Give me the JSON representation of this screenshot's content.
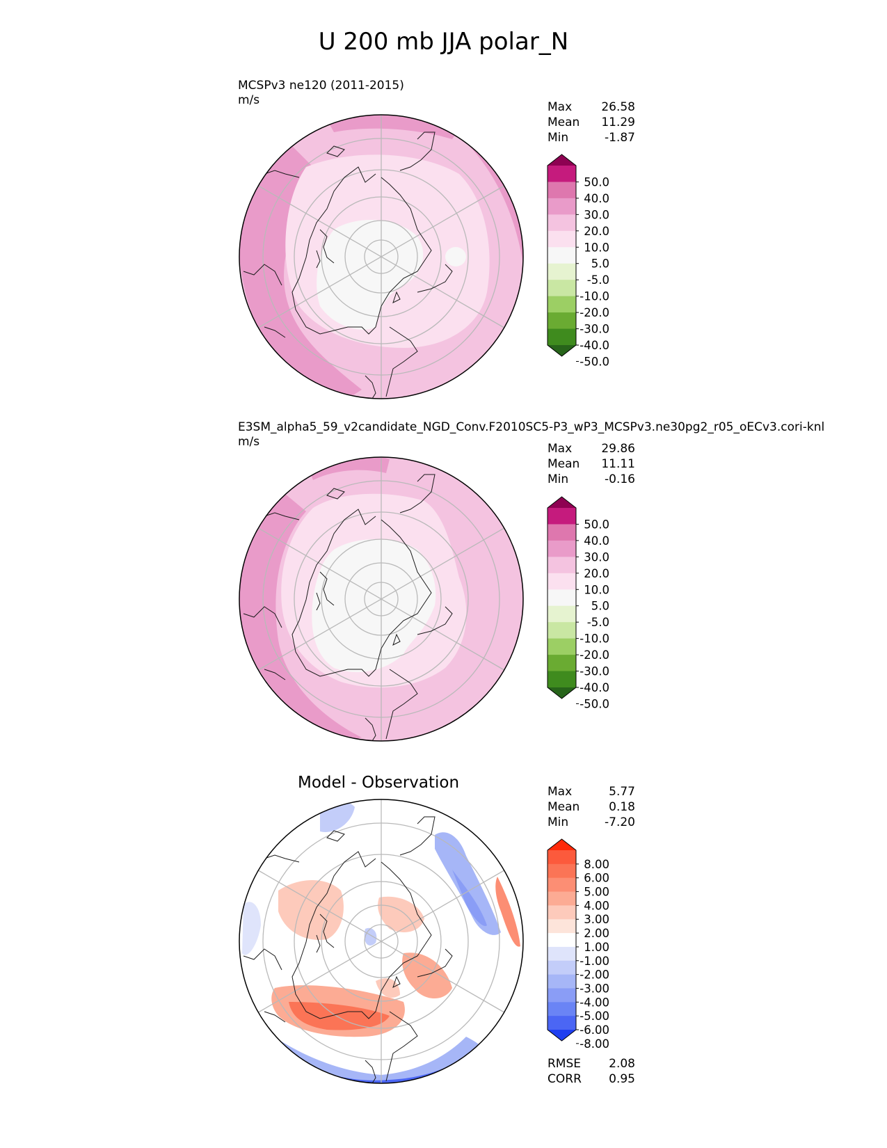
{
  "figure": {
    "title": "U 200 mb JJA polar_N"
  },
  "chart_data": [
    {
      "type": "heatmap",
      "projection": "north-polar-stereographic",
      "title": "MCSPv3 ne120 (2011-2015)",
      "units": "m/s",
      "stats": [
        {
          "label": "Max",
          "value": "26.58"
        },
        {
          "label": "Mean",
          "value": "11.29"
        },
        {
          "label": "Min",
          "value": "-1.87"
        }
      ],
      "colorbar": {
        "levels": [
          "50.0",
          "40.0",
          "30.0",
          "20.0",
          "10.0",
          "5.0",
          "-5.0",
          "-10.0",
          "-20.0",
          "-30.0",
          "-40.0",
          "-50.0"
        ],
        "colors": [
          "#8e0152",
          "#c51b7d",
          "#de77ae",
          "#e99bc9",
          "#f4c3e0",
          "#fbe0ef",
          "#f7f7f7",
          "#e6f3d0",
          "#c9e7a3",
          "#9ccf64",
          "#6aab32",
          "#3f8b1e",
          "#27641a"
        ]
      }
    },
    {
      "type": "heatmap",
      "projection": "north-polar-stereographic",
      "title": "E3SM_alpha5_59_v2candidate_NGD_Conv.F2010SC5-P3_wP3_MCSPv3.ne30pg2_r05_oECv3.cori-knl",
      "units": "m/s",
      "stats": [
        {
          "label": "Max",
          "value": "29.86"
        },
        {
          "label": "Mean",
          "value": "11.11"
        },
        {
          "label": "Min",
          "value": "-0.16"
        }
      ],
      "colorbar": {
        "levels": [
          "50.0",
          "40.0",
          "30.0",
          "20.0",
          "10.0",
          "5.0",
          "-5.0",
          "-10.0",
          "-20.0",
          "-30.0",
          "-40.0",
          "-50.0"
        ],
        "colors": [
          "#8e0152",
          "#c51b7d",
          "#de77ae",
          "#e99bc9",
          "#f4c3e0",
          "#fbe0ef",
          "#f7f7f7",
          "#e6f3d0",
          "#c9e7a3",
          "#9ccf64",
          "#6aab32",
          "#3f8b1e",
          "#27641a"
        ]
      }
    },
    {
      "type": "heatmap",
      "projection": "north-polar-stereographic",
      "title": "Model - Observation",
      "stats": [
        {
          "label": "Max",
          "value": "5.77"
        },
        {
          "label": "Mean",
          "value": "0.18"
        },
        {
          "label": "Min",
          "value": "-7.20"
        }
      ],
      "colorbar": {
        "levels": [
          "8.00",
          "6.00",
          "5.00",
          "4.00",
          "3.00",
          "2.00",
          "1.00",
          "-1.00",
          "-2.00",
          "-3.00",
          "-4.00",
          "-5.00",
          "-6.00",
          "-8.00"
        ],
        "colors": [
          "#ff2a0a",
          "#fc5a3c",
          "#fb7456",
          "#fc8e74",
          "#fcab94",
          "#fdcabb",
          "#fde4da",
          "#ffffff",
          "#dfe4fb",
          "#c3cdf9",
          "#a6b6f7",
          "#8a9df6",
          "#6a84f5",
          "#4b66f4",
          "#1f3ff0"
        ]
      },
      "metrics": [
        {
          "label": "RMSE",
          "value": "2.08"
        },
        {
          "label": "CORR",
          "value": "0.95"
        }
      ]
    }
  ]
}
